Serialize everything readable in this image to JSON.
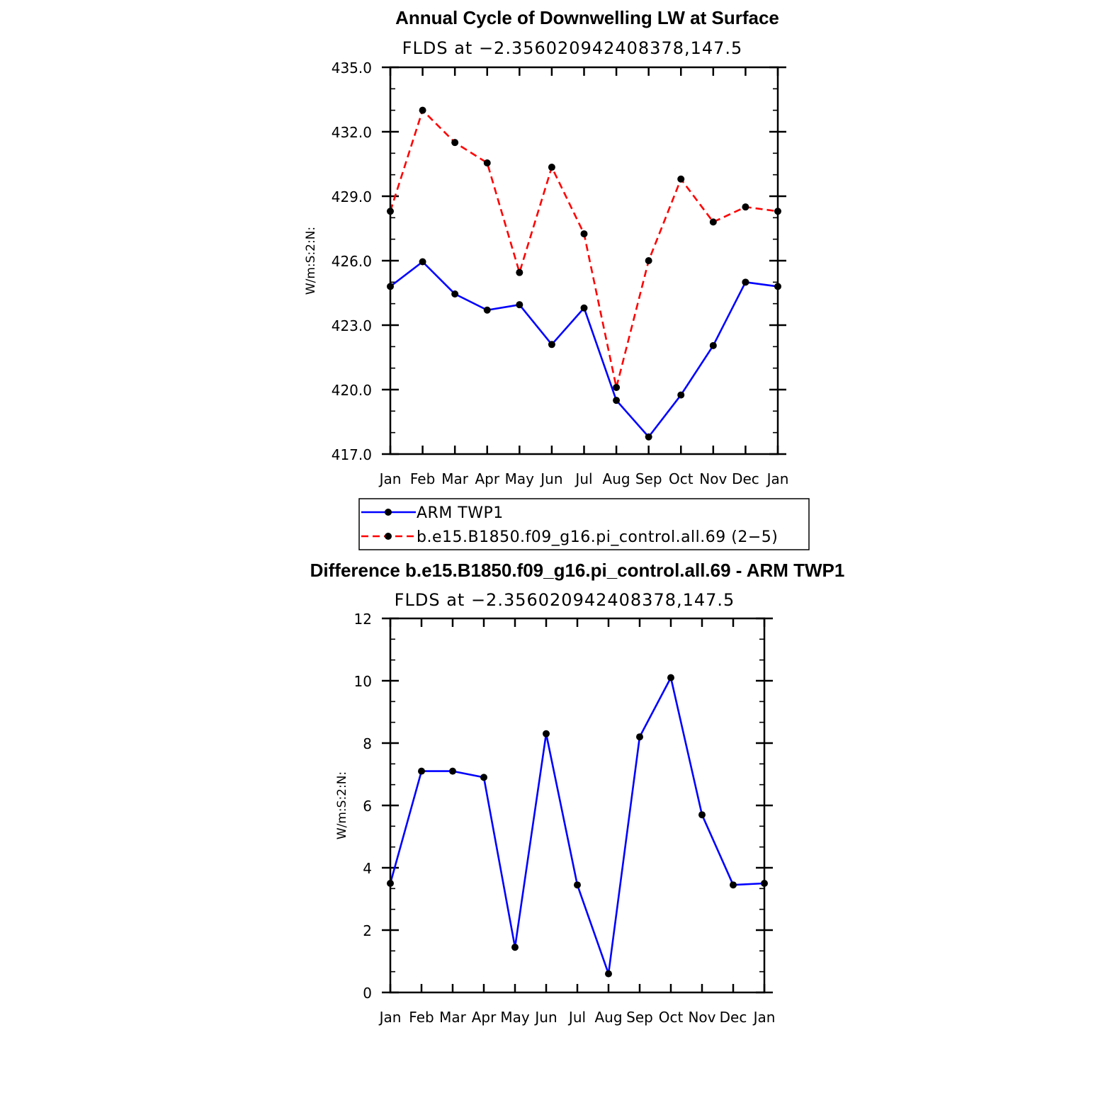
{
  "chart_data": [
    {
      "type": "line",
      "title": "Annual Cycle of Downwelling LW at Surface",
      "subtitle": "FLDS at −2.356020942408378,147.5",
      "xlabel": "",
      "ylabel": "W/m:S:2:N:",
      "categories": [
        "Jan",
        "Feb",
        "Mar",
        "Apr",
        "May",
        "Jun",
        "Jul",
        "Aug",
        "Sep",
        "Oct",
        "Nov",
        "Dec",
        "Jan"
      ],
      "ylim": [
        417.0,
        435.0
      ],
      "yticks": [
        "417.0",
        "420.0",
        "423.0",
        "426.0",
        "429.0",
        "432.0",
        "435.0"
      ],
      "grid": false,
      "legend": "below",
      "series": [
        {
          "name": "ARM TWP1",
          "color": "#0000ff",
          "dash": "solid",
          "values": [
            424.8,
            425.95,
            424.45,
            423.7,
            423.95,
            422.1,
            423.8,
            419.5,
            417.8,
            419.75,
            422.05,
            425.0,
            424.8
          ]
        },
        {
          "name": "b.e15.B1850.f09_g16.pi_control.all.69 (2−5)",
          "color": "#ff0000",
          "dash": "dashed",
          "values": [
            428.3,
            433.0,
            431.5,
            430.55,
            425.45,
            430.35,
            427.25,
            420.1,
            426.0,
            429.8,
            427.8,
            428.5,
            428.3
          ]
        }
      ]
    },
    {
      "type": "line",
      "title": "Difference b.e15.B1850.f09_g16.pi_control.all.69 - ARM TWP1",
      "subtitle": "FLDS at −2.356020942408378,147.5",
      "xlabel": "",
      "ylabel": "W/m:S:2:N:",
      "categories": [
        "Jan",
        "Feb",
        "Mar",
        "Apr",
        "May",
        "Jun",
        "Jul",
        "Aug",
        "Sep",
        "Oct",
        "Nov",
        "Dec",
        "Jan"
      ],
      "ylim": [
        0,
        12
      ],
      "yticks": [
        "0",
        "2",
        "4",
        "6",
        "8",
        "10",
        "12"
      ],
      "grid": false,
      "series": [
        {
          "color": "#0000ff",
          "dash": "solid",
          "values": [
            3.5,
            7.1,
            7.1,
            6.9,
            1.45,
            8.3,
            3.45,
            0.6,
            8.2,
            10.1,
            5.7,
            3.45,
            3.5
          ]
        }
      ]
    }
  ]
}
